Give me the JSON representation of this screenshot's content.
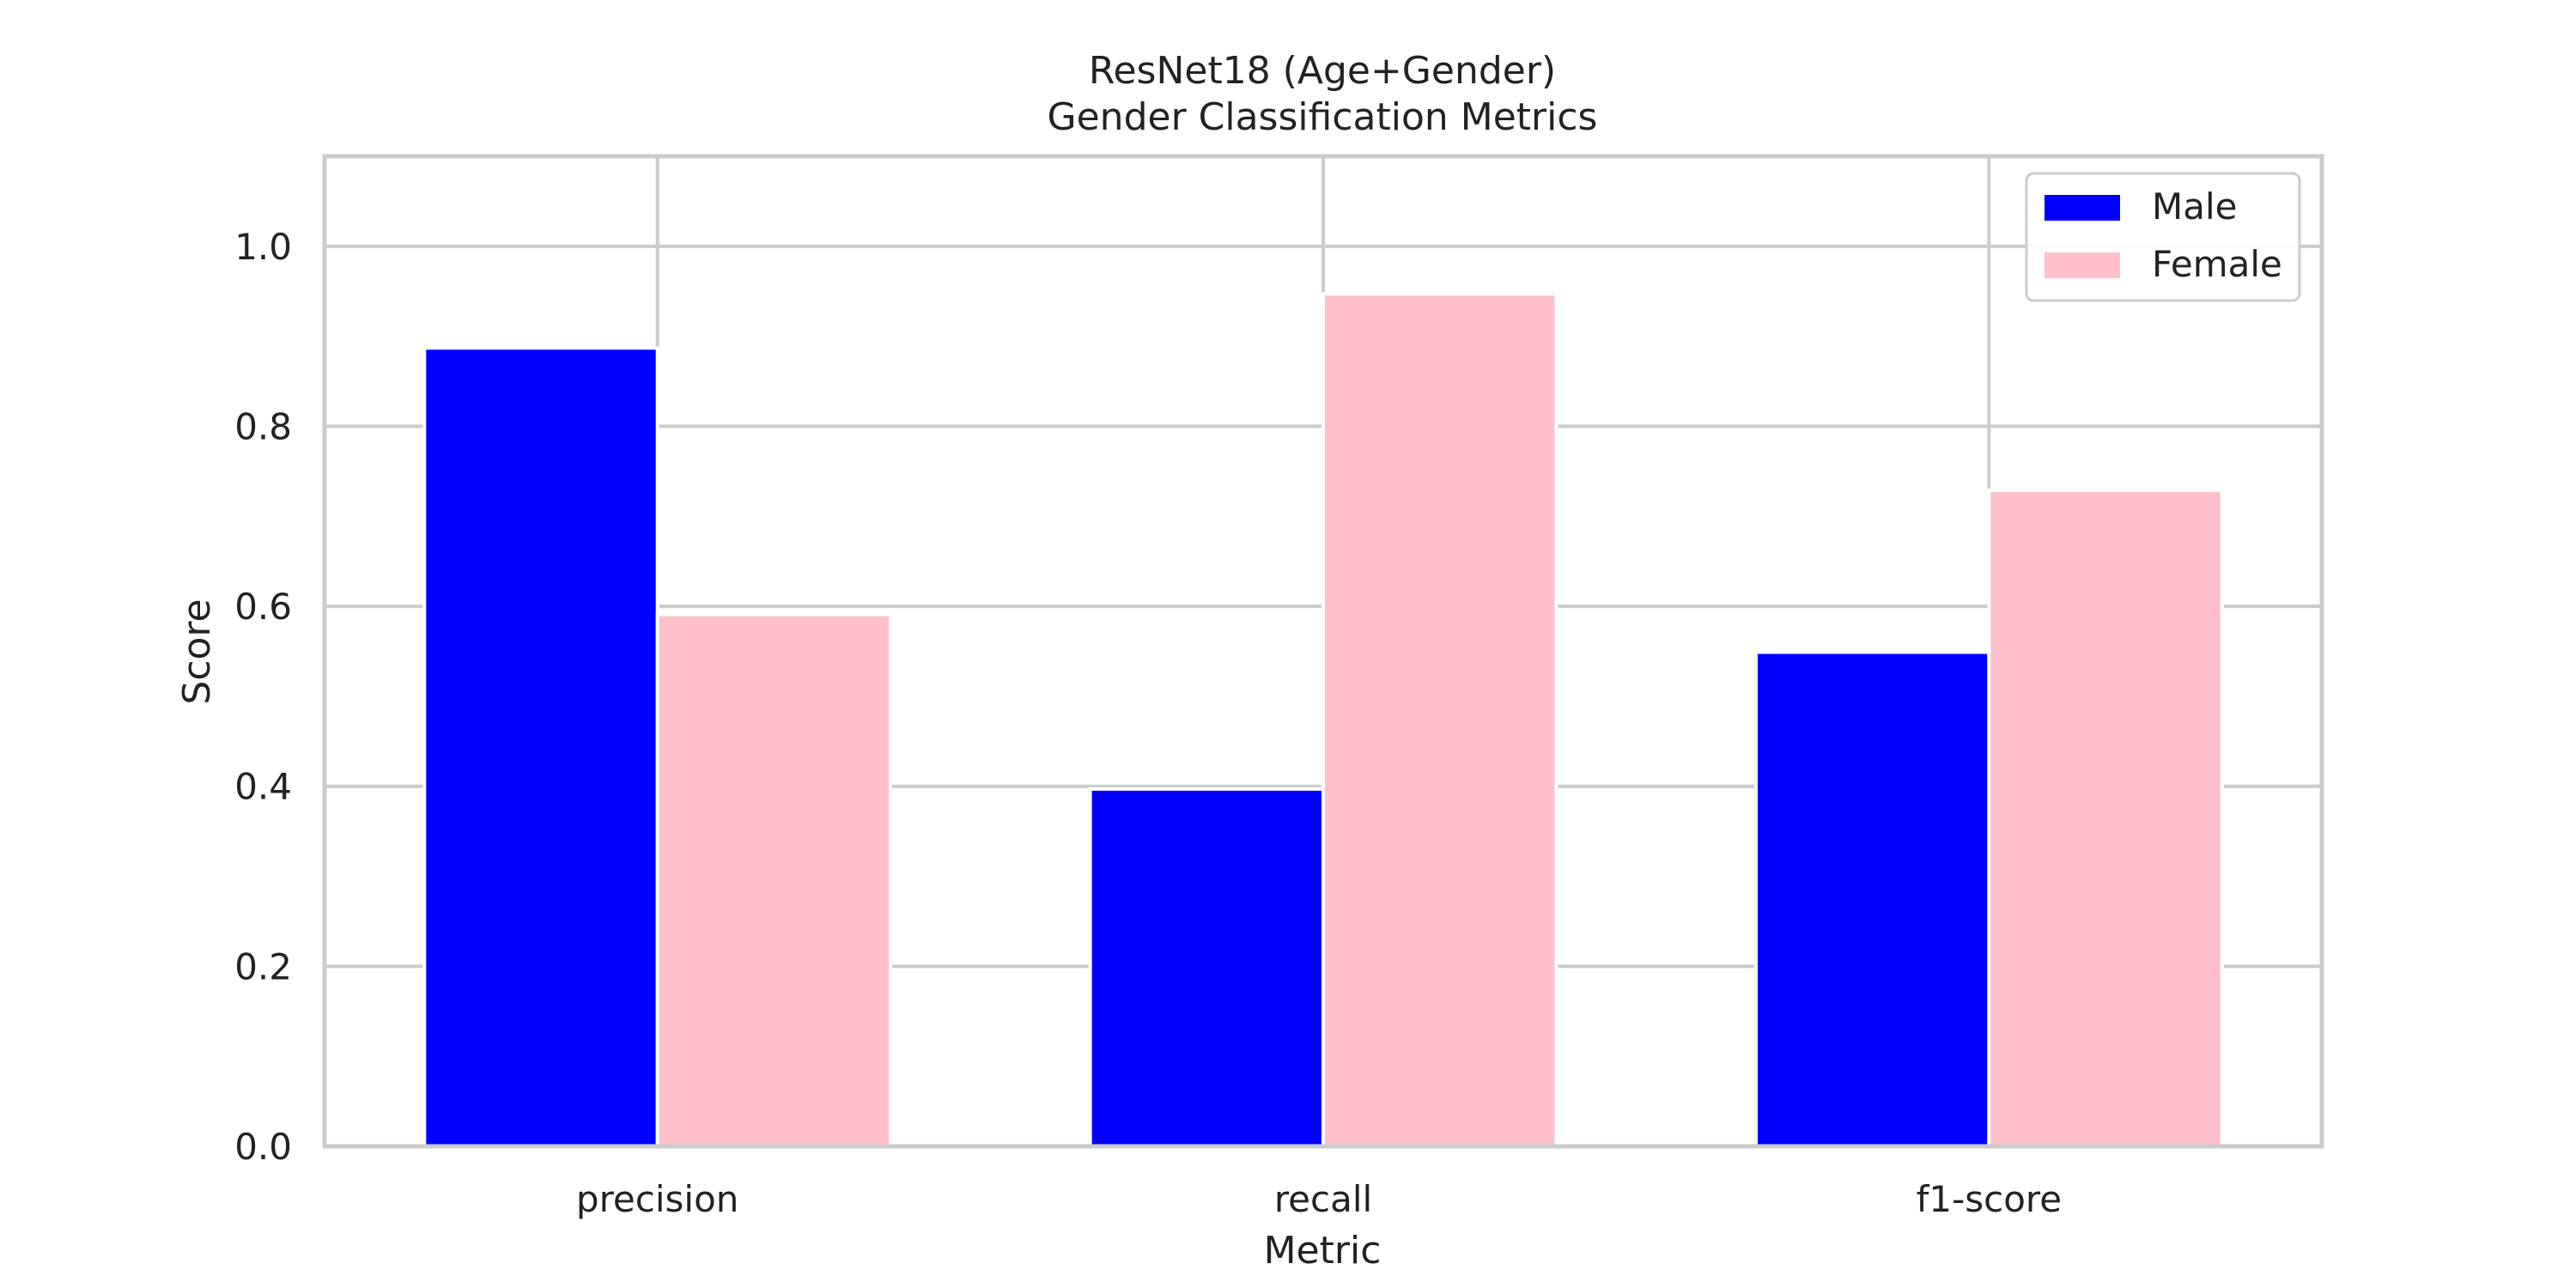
{
  "chart_data": {
    "type": "bar",
    "title": "ResNet18 (Age+Gender)",
    "subtitle": "Gender Classification Metrics",
    "xlabel": "Metric",
    "ylabel": "Score",
    "categories": [
      "precision",
      "recall",
      "f1-score"
    ],
    "series": [
      {
        "name": "Male",
        "color": "#0000ff",
        "values": [
          0.887,
          0.397,
          0.549
        ]
      },
      {
        "name": "Female",
        "color": "#ffc0cb",
        "values": [
          0.591,
          0.947,
          0.729
        ]
      }
    ],
    "ylim": [
      0,
      1.1
    ],
    "yticks": [
      0.0,
      0.2,
      0.4,
      0.6,
      0.8,
      1.0
    ],
    "ytick_labels": [
      "0.0",
      "0.2",
      "0.4",
      "0.6",
      "0.8",
      "1.0"
    ],
    "grid": true,
    "legend_position": "top-right",
    "colors": {
      "grid": "#cccccc",
      "axes_frame": "#cccccc",
      "text": "#222222"
    }
  }
}
